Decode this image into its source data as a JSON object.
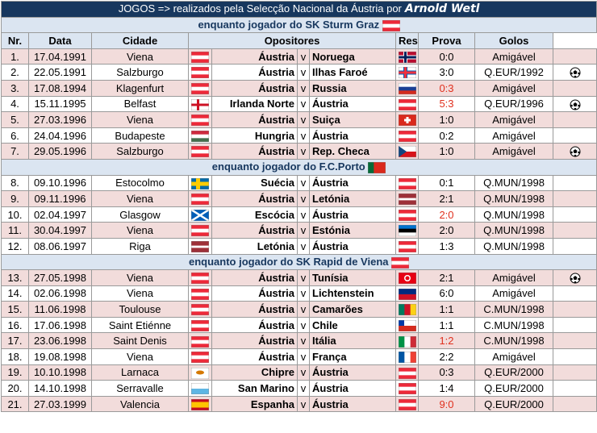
{
  "title": {
    "prefix": "JOGOS => realizados pela Selecção Nacional da Áustria por",
    "name": "Arnold Wetl"
  },
  "headers": [
    "Nr.",
    "Data",
    "Cidade",
    "Opositores",
    "Resultado",
    "Prova",
    "Golos"
  ],
  "sections": [
    {
      "title": "enquanto jogador do SK Sturm Graz",
      "rows": [
        [
          "1.",
          "17.04.1991",
          "Viena",
          "Áustria",
          "v",
          "Noruega",
          "0:0",
          "Amigável"
        ],
        [
          "2.",
          "22.05.1991",
          "Salzburgo",
          "Áustria",
          "v",
          "Ilhas Faroé",
          "3:0",
          "Q.EUR/1992"
        ],
        [
          "3.",
          "17.08.1994",
          "Klagenfurt",
          "Áustria",
          "v",
          "Russia",
          "0:3",
          "Amigável"
        ],
        [
          "4.",
          "15.11.1995",
          "Belfast",
          "Irlanda Norte",
          "v",
          "Áustria",
          "5:3",
          "Q.EUR/1996"
        ],
        [
          "5.",
          "27.03.1996",
          "Viena",
          "Áustria",
          "v",
          "Suiça",
          "1:0",
          "Amigável"
        ],
        [
          "6.",
          "24.04.1996",
          "Budapeste",
          "Hungria",
          "v",
          "Áustria",
          "0:2",
          "Amigável"
        ],
        [
          "7.",
          "29.05.1996",
          "Salzburgo",
          "Áustria",
          "v",
          "Rep. Checa",
          "1:0",
          "Amigável"
        ]
      ]
    },
    {
      "title": "enquanto jogador do F.C.Porto",
      "rows": [
        [
          "8.",
          "09.10.1996",
          "Estocolmo",
          "Suécia",
          "v",
          "Áustria",
          "0:1",
          "Q.MUN/1998"
        ],
        [
          "9.",
          "09.11.1996",
          "Viena",
          "Áustria",
          "v",
          "Letónia",
          "2:1",
          "Q.MUN/1998"
        ],
        [
          "10.",
          "02.04.1997",
          "Glasgow",
          "Escócia",
          "v",
          "Áustria",
          "2:0",
          "Q.MUN/1998"
        ],
        [
          "11.",
          "30.04.1997",
          "Viena",
          "Áustria",
          "v",
          "Estónia",
          "2:0",
          "Q.MUN/1998"
        ],
        [
          "12.",
          "08.06.1997",
          "Riga",
          "Letónia",
          "v",
          "Áustria",
          "1:3",
          "Q.MUN/1998"
        ]
      ]
    },
    {
      "title": "enquanto jogador do SK Rapid de Viena",
      "rows": [
        [
          "13.",
          "27.05.1998",
          "Viena",
          "Áustria",
          "v",
          "Tunísia",
          "2:1",
          "Amigável"
        ],
        [
          "14.",
          "02.06.1998",
          "Viena",
          "Áustria",
          "v",
          "Lichtenstein",
          "6:0",
          "Amigável"
        ],
        [
          "15.",
          "11.06.1998",
          "Toulouse",
          "Áustria",
          "v",
          "Camarões",
          "1:1",
          "C.MUN/1998"
        ],
        [
          "16.",
          "17.06.1998",
          "Saint Etiénne",
          "Áustria",
          "v",
          "Chile",
          "1:1",
          "C.MUN/1998"
        ],
        [
          "17.",
          "23.06.1998",
          "Saint Denis",
          "Áustria",
          "v",
          "Itália",
          "1:2",
          "C.MUN/1998"
        ],
        [
          "18.",
          "19.08.1998",
          "Viena",
          "Áustria",
          "v",
          "França",
          "2:2",
          "Amigável"
        ],
        [
          "19.",
          "10.10.1998",
          "Larnaca",
          "Chipre",
          "v",
          "Áustria",
          "0:3",
          "Q.EUR/2000"
        ],
        [
          "20.",
          "14.10.1998",
          "Serravalle",
          "San Marino",
          "v",
          "Áustria",
          "1:4",
          "Q.EUR/2000"
        ],
        [
          "21.",
          "27.03.1999",
          "Valencia",
          "Espanha",
          "v",
          "Áustria",
          "9:0",
          "Q.EUR/2000"
        ]
      ]
    }
  ]
}
